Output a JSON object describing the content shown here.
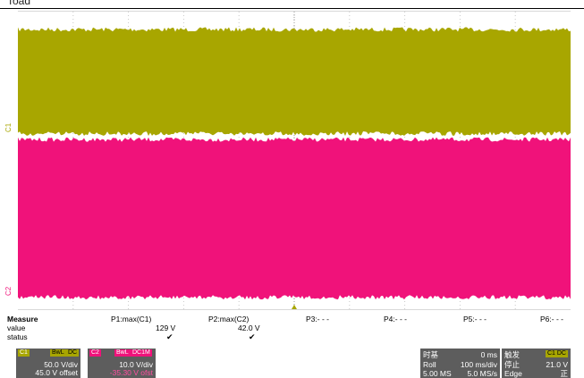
{
  "header_fragment": "Toad",
  "scope": {
    "colors": {
      "ch1": "#a8a600",
      "ch2": "#f0127a",
      "grid": "#c8c8c8",
      "trigger": "#a8a600"
    },
    "channels": [
      {
        "id": "ch1",
        "label": "C1",
        "band_top": 0.06,
        "band_bottom": 0.41
      },
      {
        "id": "ch2",
        "label": "C2",
        "band_top": 0.43,
        "band_bottom": 0.96
      }
    ],
    "trigger_marker": "◄"
  },
  "measure": {
    "title": "Measure",
    "row_labels": [
      "value",
      "status"
    ],
    "columns": [
      {
        "name": "P1:max(C1)",
        "value": "129 V",
        "status": "✔"
      },
      {
        "name": "P2:max(C2)",
        "value": "42.0 V",
        "status": "✔"
      },
      {
        "name": "P3:- - -",
        "value": "",
        "status": ""
      },
      {
        "name": "P4:- - -",
        "value": "",
        "status": ""
      },
      {
        "name": "P5:- - -",
        "value": "",
        "status": ""
      },
      {
        "name": "P6:- - -",
        "value": "",
        "status": ""
      }
    ]
  },
  "channel_boxes": [
    {
      "name": "C1",
      "tags": [
        "BwL",
        "DC"
      ],
      "vdiv": "50.0 V/div",
      "offset": "45.0 V offset",
      "color": "#a8a600"
    },
    {
      "name": "C2",
      "tags": [
        "BwL",
        "DC1M"
      ],
      "vdiv": "10.0 V/div",
      "offset": "-35.30 V ofst",
      "color": "#f0127a"
    }
  ],
  "timebase": {
    "title": "时基",
    "delay": "0 ms",
    "mode": "Roll",
    "tdiv": "100 ms/div",
    "samples": "5.00 MS",
    "rate": "5.0 MS/s"
  },
  "trigger": {
    "title": "触发",
    "badge": "C1 DC",
    "state": "停止",
    "level": "21.0 V",
    "type": "Edge",
    "slope": "正"
  }
}
